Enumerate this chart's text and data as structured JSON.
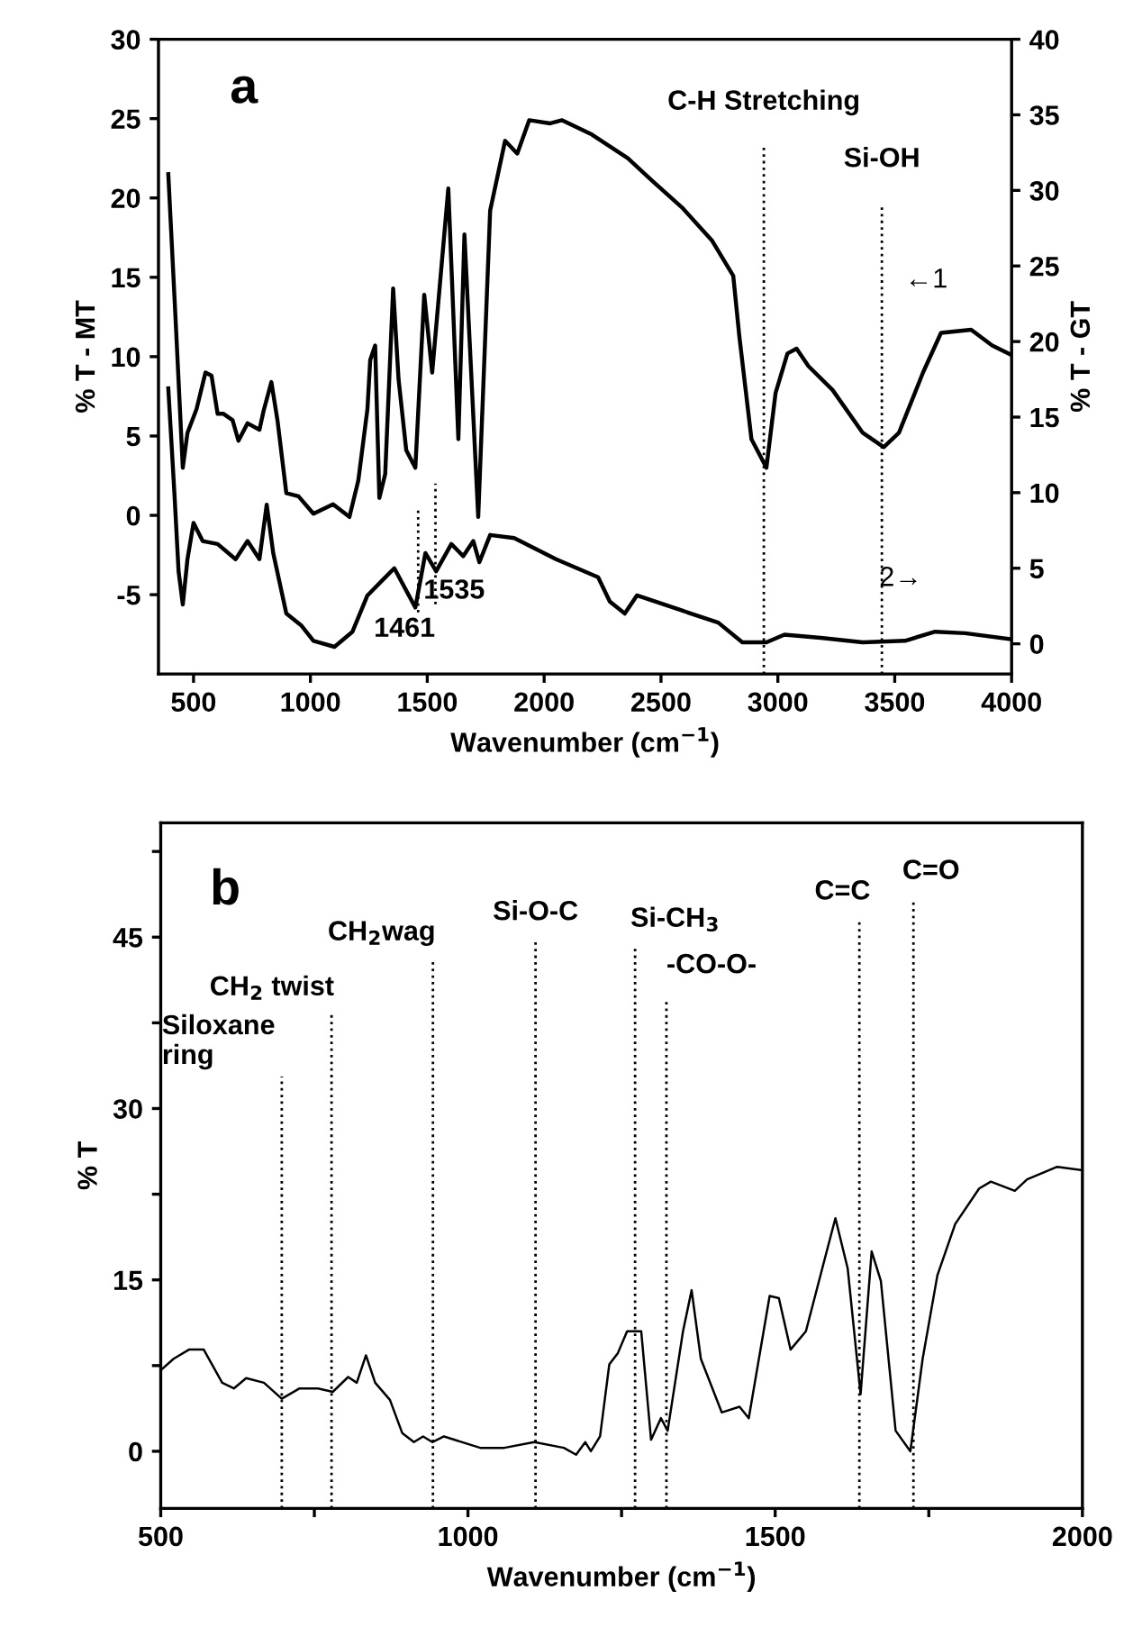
{
  "chart_data": [
    {
      "type": "line",
      "xlabel": "Wavenumber (cm$^{−1}$)",
      "ylabel": "% T - MT",
      "y2label": "% T - GT",
      "xlim": [
        350,
        4000
      ],
      "xticks": [
        500,
        1000,
        1500,
        2000,
        2500,
        3000,
        3500,
        4000
      ],
      "ylim": [
        -10,
        30
      ],
      "yticks": [
        -5,
        0,
        5,
        10,
        15,
        20,
        25,
        30
      ],
      "y2lim": [
        -2,
        40
      ],
      "y2ticks": [
        0,
        5,
        10,
        15,
        20,
        25,
        30,
        35,
        40
      ],
      "grid": false,
      "legend": false,
      "marker": "none",
      "line_style": "solid",
      "series": [
        {
          "color": "#000000",
          "x": [
            392,
            423,
            454,
            474,
            513,
            551,
            577,
            603,
            628,
            667,
            692,
            731,
            782,
            800,
            833,
            859,
            897,
            949,
            1013,
            1097,
            1167,
            1205,
            1244,
            1256,
            1277,
            1295,
            1320,
            1354,
            1377,
            1410,
            1449,
            1487,
            1521,
            1590,
            1633,
            1659,
            1718,
            1769,
            1833,
            1885,
            1936,
            2026,
            2077,
            2204,
            2358,
            2461,
            2590,
            2719,
            2809,
            2835,
            2887,
            2951,
            2990,
            3041,
            3080,
            3131,
            3234,
            3363,
            3453,
            3518,
            3621,
            3698,
            3827,
            3917,
            4000
          ],
          "values": [
            21.5,
            12.4,
            3.0,
            5.2,
            6.7,
            9.0,
            8.8,
            6.4,
            6.4,
            6.0,
            4.7,
            5.8,
            5.4,
            6.6,
            8.4,
            6.0,
            1.4,
            1.2,
            0.1,
            0.7,
            -0.1,
            2.2,
            6.7,
            9.8,
            10.7,
            1.1,
            2.6,
            14.3,
            8.6,
            4.1,
            3.0,
            13.9,
            9.0,
            20.6,
            4.8,
            17.7,
            -0.1,
            19.2,
            23.6,
            22.8,
            24.9,
            24.7,
            24.9,
            24.0,
            22.5,
            21.1,
            19.4,
            17.3,
            15.1,
            11.3,
            4.8,
            3.0,
            7.7,
            10.2,
            10.5,
            9.4,
            7.9,
            5.2,
            4.3,
            5.2,
            9.0,
            11.5,
            11.7,
            10.7,
            10.1
          ]
        },
        {
          "color": "#000000",
          "axis": "y2",
          "x": [
            392,
            418,
            436,
            454,
            474,
            500,
            539,
            603,
            680,
            731,
            782,
            813,
            841,
            897,
            962,
            1013,
            1103,
            1180,
            1244,
            1308,
            1359,
            1449,
            1492,
            1538,
            1603,
            1654,
            1697,
            1723,
            1769,
            1872,
            2051,
            2231,
            2281,
            2345,
            2397,
            2590,
            2745,
            2848,
            2951,
            3028,
            3183,
            3363,
            3544,
            3673,
            3801,
            4000
          ],
          "values": [
            16.9,
            10.0,
            4.8,
            2.6,
            5.6,
            8.0,
            6.8,
            6.6,
            5.6,
            6.8,
            5.6,
            9.2,
            6.0,
            2.0,
            1.2,
            0.2,
            -0.2,
            0.8,
            3.2,
            4.2,
            5.0,
            2.4,
            6.0,
            4.8,
            6.6,
            5.8,
            6.8,
            5.4,
            7.2,
            7.0,
            5.6,
            4.4,
            2.8,
            2.0,
            3.2,
            2.2,
            1.4,
            0.1,
            0.1,
            0.6,
            0.4,
            0.1,
            0.2,
            0.8,
            0.7,
            0.3
          ]
        }
      ],
      "ref_lines": [
        {
          "axis": "x",
          "value": 1461,
          "label": "1461",
          "line_style": "dotted"
        },
        {
          "axis": "x",
          "value": 1535,
          "label": "1535",
          "line_style": "dotted"
        },
        {
          "axis": "x",
          "value": 2940,
          "label": "C-H Stretching",
          "line_style": "dotted"
        },
        {
          "axis": "x",
          "value": 3445,
          "label": "Si-OH",
          "line_style": "dotted"
        }
      ],
      "annotations": [
        "a",
        "←1",
        "2→"
      ]
    },
    {
      "type": "line",
      "xlabel": "Wavenumber (cm$^{−1}$)",
      "ylabel": "% T",
      "xlim": [
        500,
        2000
      ],
      "xticks": [
        500,
        {
          "value": 750,
          "label": null
        },
        1000,
        {
          "value": 1250,
          "label": null
        },
        1500,
        {
          "value": 1750,
          "label": null
        },
        2000
      ],
      "ylim": [
        -5,
        55
      ],
      "yticks": [
        0,
        {
          "value": 7.5,
          "label": null
        },
        15,
        {
          "value": 22.5,
          "label": null
        },
        30,
        {
          "value": 37.5,
          "label": null
        },
        45,
        {
          "value": 52.5,
          "label": null
        }
      ],
      "grid": false,
      "legend": false,
      "marker": "none",
      "line_style": "solid",
      "series": [
        {
          "color": "#000000",
          "x": [
            500,
            521,
            546,
            570,
            600,
            619,
            639,
            668,
            697,
            726,
            756,
            780,
            805,
            819,
            834,
            849,
            873,
            893,
            912,
            927,
            942,
            961,
            1020,
            1059,
            1108,
            1156,
            1176,
            1191,
            1200,
            1215,
            1230,
            1244,
            1259,
            1282,
            1298,
            1314,
            1325,
            1350,
            1364,
            1379,
            1413,
            1442,
            1457,
            1491,
            1506,
            1525,
            1550,
            1579,
            1598,
            1618,
            1639,
            1657,
            1672,
            1696,
            1720,
            1740,
            1764,
            1793,
            1832,
            1851,
            1890,
            1910,
            1959,
            2000
          ],
          "values": [
            7.1,
            8.1,
            8.9,
            8.9,
            6.0,
            5.5,
            6.4,
            6.0,
            4.6,
            5.5,
            5.5,
            5.2,
            6.5,
            6.0,
            8.4,
            6.0,
            4.5,
            1.6,
            0.8,
            1.3,
            0.8,
            1.3,
            0.3,
            0.3,
            0.8,
            0.3,
            -0.3,
            0.8,
            0.0,
            1.3,
            7.6,
            8.6,
            10.5,
            10.5,
            1.0,
            2.9,
            1.8,
            10.5,
            14.1,
            8.1,
            3.4,
            3.9,
            2.9,
            13.6,
            13.4,
            8.9,
            10.5,
            16.5,
            20.4,
            16.0,
            5.0,
            17.5,
            14.9,
            1.8,
            0.0,
            8.1,
            15.4,
            19.9,
            23.0,
            23.6,
            22.8,
            23.8,
            24.9,
            24.6
          ]
        }
      ],
      "ref_lines": [
        {
          "axis": "x",
          "value": 697,
          "label": "Siloxane\nring",
          "line_style": "dotted"
        },
        {
          "axis": "x",
          "value": 778,
          "label": "CH$_{2}$ twist",
          "line_style": "dotted"
        },
        {
          "axis": "x",
          "value": 943,
          "label": "CH$_{2}$wag",
          "line_style": "dotted"
        },
        {
          "axis": "x",
          "value": 1110,
          "label": "Si-O-C",
          "line_style": "dotted"
        },
        {
          "axis": "x",
          "value": 1272,
          "label": "Si-CH$_{3}$",
          "line_style": "dotted"
        },
        {
          "axis": "x",
          "value": 1323,
          "label": "-CO-O-",
          "line_style": "dotted"
        },
        {
          "axis": "x",
          "value": 1637,
          "label": "C=C",
          "line_style": "dotted"
        },
        {
          "axis": "x",
          "value": 1725,
          "label": "C=O",
          "line_style": "dotted"
        }
      ],
      "annotations": [
        "b"
      ]
    }
  ]
}
